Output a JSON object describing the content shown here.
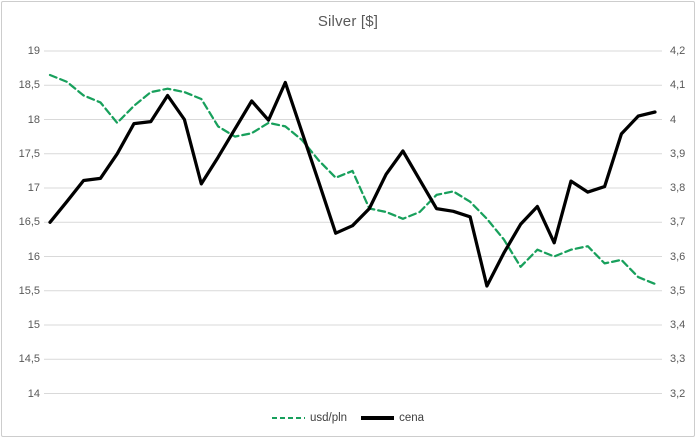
{
  "title": "Silver [$]",
  "legend": [
    {
      "label": "usd/pln",
      "color": "#18a05c",
      "style": "dashed"
    },
    {
      "label": "cena",
      "color": "#000000",
      "style": "solid"
    }
  ],
  "axes": {
    "left_ticks": [
      "19",
      "18,5",
      "18",
      "17,5",
      "17",
      "16,5",
      "16",
      "15,5",
      "15",
      "14,5",
      "14"
    ],
    "right_ticks": [
      "4,2",
      "4,1",
      "4",
      "3,9",
      "3,8",
      "3,7",
      "3,6",
      "3,5",
      "3,4",
      "3,3",
      "3,2"
    ]
  },
  "chart_data": {
    "type": "line",
    "title": "Silver [$]",
    "grid": true,
    "legend_position": "bottom",
    "x_axis": {
      "labels_visible": false,
      "points": 37
    },
    "left_axis": {
      "min": 14,
      "max": 19,
      "step": 0.5
    },
    "right_axis": {
      "min": 3.2,
      "max": 4.2,
      "step": 0.1
    },
    "series": [
      {
        "name": "usd/pln",
        "axis": "right",
        "color": "#18a05c",
        "dash": true,
        "values": [
          4.13,
          4.11,
          4.07,
          4.05,
          3.99,
          4.04,
          4.08,
          4.09,
          4.08,
          4.06,
          3.98,
          3.95,
          3.96,
          3.99,
          3.98,
          3.94,
          3.88,
          3.83,
          3.85,
          3.74,
          3.73,
          3.71,
          3.73,
          3.78,
          3.79,
          3.76,
          3.71,
          3.65,
          3.57,
          3.62,
          3.6,
          3.62,
          3.63,
          3.58,
          3.59,
          3.54,
          3.52
        ]
      },
      {
        "name": "cena",
        "axis": "left",
        "color": "#000000",
        "dash": false,
        "values": [
          16.5,
          16.8,
          17.11,
          17.14,
          17.5,
          17.94,
          17.97,
          18.35,
          18.0,
          17.06,
          17.45,
          17.86,
          18.27,
          17.99,
          18.54,
          17.81,
          17.08,
          16.34,
          16.45,
          16.7,
          17.2,
          17.54,
          17.12,
          16.7,
          16.66,
          16.58,
          15.57,
          16.05,
          16.47,
          16.73,
          16.2,
          17.1,
          16.94,
          17.02,
          17.79,
          18.05,
          18.11
        ]
      }
    ]
  }
}
